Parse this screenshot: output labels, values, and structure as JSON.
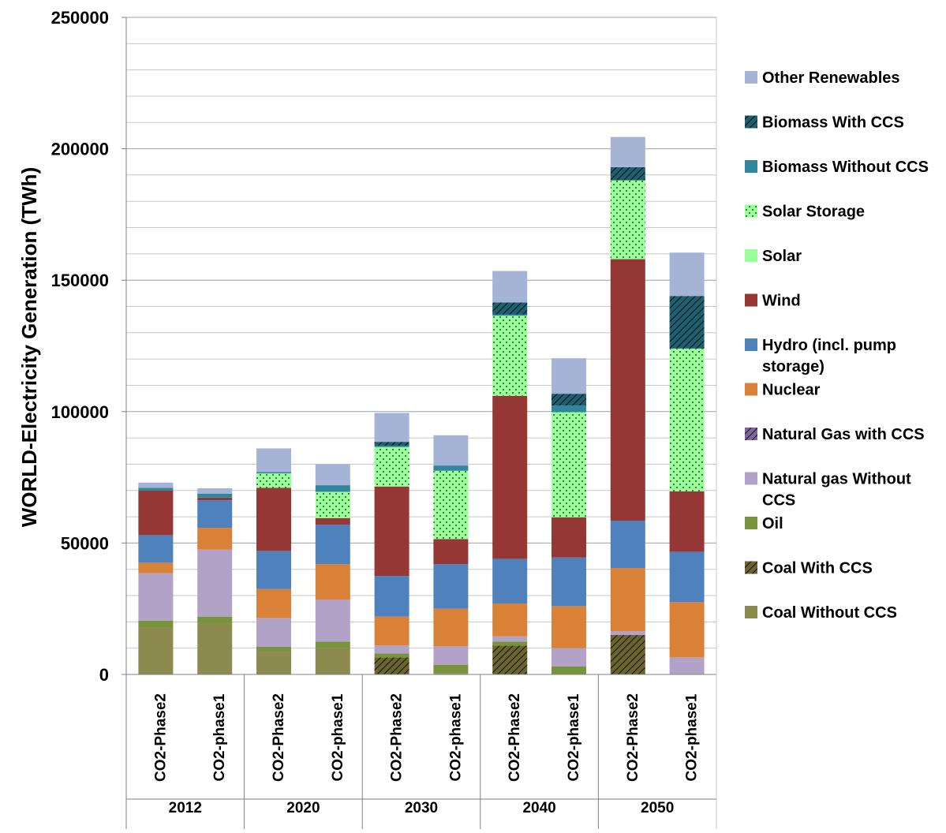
{
  "chart_data": {
    "type": "bar",
    "stacked": true,
    "title": "",
    "xlabel": "",
    "ylabel": "WORLD-Electricity Generation (TWh)",
    "ylim": [
      0,
      250000
    ],
    "yticks": [
      0,
      50000,
      100000,
      150000,
      200000,
      250000
    ],
    "ytick_labels": [
      "0",
      "50000",
      "100000",
      "150000",
      "200000",
      "250000"
    ],
    "minor_gridlines": true,
    "legend_position": "right",
    "groups": [
      {
        "label": "2012",
        "categories": [
          "CO2-Phase2",
          "CO2-phase1"
        ]
      },
      {
        "label": "2020",
        "categories": [
          "CO2-Phase2",
          "CO2-phase1"
        ]
      },
      {
        "label": "2030",
        "categories": [
          "CO2-Phase2",
          "CO2-phase1"
        ]
      },
      {
        "label": "2040",
        "categories": [
          "CO2-Phase2",
          "CO2-phase1"
        ]
      },
      {
        "label": "2050",
        "categories": [
          "CO2-Phase2",
          "CO2-phase1"
        ]
      }
    ],
    "series": [
      {
        "name": "Coal Without CCS",
        "color": "#8c8a4e",
        "pattern": "solid",
        "values": [
          18000,
          19500,
          9000,
          10000,
          0,
          500,
          0,
          0,
          0,
          0
        ]
      },
      {
        "name": "Coal With CCS",
        "color": "#6b6430",
        "pattern": "diagonal",
        "values": [
          0,
          0,
          0,
          0,
          6500,
          0,
          11000,
          0,
          15000,
          0
        ]
      },
      {
        "name": "Oil",
        "color": "#77933c",
        "pattern": "solid",
        "values": [
          2500,
          2500,
          1500,
          2500,
          1500,
          3200,
          1500,
          3000,
          0,
          0
        ]
      },
      {
        "name": "Natural gas Without CCS",
        "color": "#b3a2c7",
        "pattern": "solid",
        "values": [
          18000,
          25500,
          11000,
          16000,
          3000,
          7000,
          2000,
          7000,
          1500,
          6500
        ]
      },
      {
        "name": "Natural Gas with CCS",
        "color": "#8064a2",
        "pattern": "diagonal",
        "values": [
          0,
          0,
          0,
          0,
          0,
          0,
          0,
          0,
          0,
          0
        ]
      },
      {
        "name": "Nuclear",
        "color": "#d98136",
        "pattern": "solid",
        "values": [
          4000,
          8300,
          11000,
          13500,
          11000,
          14300,
          12500,
          16000,
          24000,
          21000
        ]
      },
      {
        "name": "Hydro (incl. pump storage)",
        "color": "#4f81bd",
        "pattern": "solid",
        "values": [
          10500,
          10500,
          14500,
          15000,
          15500,
          17000,
          17000,
          18500,
          18000,
          19200
        ]
      },
      {
        "name": "Wind",
        "color": "#953735",
        "pattern": "solid",
        "values": [
          17000,
          1000,
          24000,
          2500,
          34000,
          9500,
          62000,
          15300,
          99500,
          23000
        ]
      },
      {
        "name": "Solar",
        "color": "#99ff99",
        "pattern": "solid",
        "values": [
          0,
          0,
          0,
          0,
          0,
          0,
          0,
          0,
          0,
          0
        ]
      },
      {
        "name": "Solar Storage",
        "color": "#99ff99",
        "pattern": "dots",
        "values": [
          0,
          0,
          5500,
          10000,
          15000,
          26000,
          30500,
          40000,
          30000,
          54300
        ]
      },
      {
        "name": "Biomass Without CCS",
        "color": "#31859c",
        "pattern": "solid",
        "values": [
          1000,
          1500,
          500,
          2500,
          500,
          2000,
          500,
          2500,
          0,
          0
        ]
      },
      {
        "name": "Biomass With CCS",
        "color": "#1f5f70",
        "pattern": "diagonal",
        "values": [
          0,
          0,
          0,
          0,
          1500,
          0,
          4500,
          4500,
          5000,
          20000
        ]
      },
      {
        "name": "Other Renewables",
        "color": "#a5b4d6",
        "pattern": "solid",
        "values": [
          2000,
          2000,
          9000,
          8000,
          11000,
          11500,
          12000,
          13500,
          11500,
          16500
        ]
      }
    ],
    "legend_order": [
      "Other Renewables",
      "Biomass With CCS",
      "Biomass Without CCS",
      "Solar Storage",
      "Solar",
      "Wind",
      "Hydro (incl. pump storage)",
      "Nuclear",
      "Natural Gas with CCS",
      "Natural gas Without CCS",
      "Oil",
      "Coal With CCS",
      "Coal Without CCS"
    ],
    "legend_lines": {
      "Other Renewables": [
        "Other Renewables"
      ],
      "Biomass With CCS": [
        "Biomass With CCS"
      ],
      "Biomass Without CCS": [
        "Biomass Without CCS"
      ],
      "Solar Storage": [
        "Solar Storage"
      ],
      "Solar": [
        "Solar"
      ],
      "Wind": [
        "Wind"
      ],
      "Hydro (incl. pump storage)": [
        "Hydro (incl. pump",
        "storage)"
      ],
      "Nuclear": [
        "Nuclear"
      ],
      "Natural Gas with CCS": [
        "Natural Gas with CCS"
      ],
      "Natural gas Without CCS": [
        "Natural gas Without",
        "CCS"
      ],
      "Oil": [
        "Oil"
      ],
      "Coal With CCS": [
        "Coal With CCS"
      ],
      "Coal Without CCS": [
        "Coal Without CCS"
      ]
    }
  }
}
